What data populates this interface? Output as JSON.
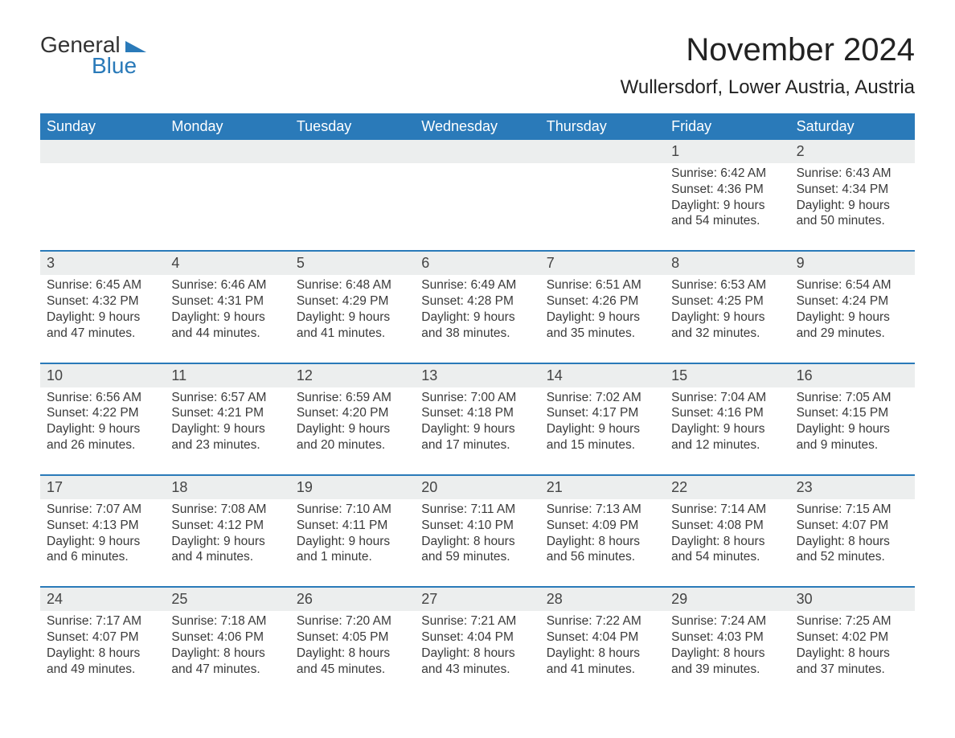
{
  "brand": {
    "word1": "General",
    "word2": "Blue"
  },
  "title": "November 2024",
  "location": "Wullersdorf, Lower Austria, Austria",
  "colors": {
    "accent": "#2a7ab9",
    "header_bg": "#2a7ab9",
    "header_text": "#ffffff",
    "row_stripe": "#eceeee",
    "text": "#333333",
    "background": "#ffffff"
  },
  "layout": {
    "columns": 7,
    "rows": 5,
    "start_day_index": 5
  },
  "weekdays": [
    "Sunday",
    "Monday",
    "Tuesday",
    "Wednesday",
    "Thursday",
    "Friday",
    "Saturday"
  ],
  "days": [
    {
      "n": 1,
      "sunrise": "6:42 AM",
      "sunset": "4:36 PM",
      "daylight": "9 hours and 54 minutes."
    },
    {
      "n": 2,
      "sunrise": "6:43 AM",
      "sunset": "4:34 PM",
      "daylight": "9 hours and 50 minutes."
    },
    {
      "n": 3,
      "sunrise": "6:45 AM",
      "sunset": "4:32 PM",
      "daylight": "9 hours and 47 minutes."
    },
    {
      "n": 4,
      "sunrise": "6:46 AM",
      "sunset": "4:31 PM",
      "daylight": "9 hours and 44 minutes."
    },
    {
      "n": 5,
      "sunrise": "6:48 AM",
      "sunset": "4:29 PM",
      "daylight": "9 hours and 41 minutes."
    },
    {
      "n": 6,
      "sunrise": "6:49 AM",
      "sunset": "4:28 PM",
      "daylight": "9 hours and 38 minutes."
    },
    {
      "n": 7,
      "sunrise": "6:51 AM",
      "sunset": "4:26 PM",
      "daylight": "9 hours and 35 minutes."
    },
    {
      "n": 8,
      "sunrise": "6:53 AM",
      "sunset": "4:25 PM",
      "daylight": "9 hours and 32 minutes."
    },
    {
      "n": 9,
      "sunrise": "6:54 AM",
      "sunset": "4:24 PM",
      "daylight": "9 hours and 29 minutes."
    },
    {
      "n": 10,
      "sunrise": "6:56 AM",
      "sunset": "4:22 PM",
      "daylight": "9 hours and 26 minutes."
    },
    {
      "n": 11,
      "sunrise": "6:57 AM",
      "sunset": "4:21 PM",
      "daylight": "9 hours and 23 minutes."
    },
    {
      "n": 12,
      "sunrise": "6:59 AM",
      "sunset": "4:20 PM",
      "daylight": "9 hours and 20 minutes."
    },
    {
      "n": 13,
      "sunrise": "7:00 AM",
      "sunset": "4:18 PM",
      "daylight": "9 hours and 17 minutes."
    },
    {
      "n": 14,
      "sunrise": "7:02 AM",
      "sunset": "4:17 PM",
      "daylight": "9 hours and 15 minutes."
    },
    {
      "n": 15,
      "sunrise": "7:04 AM",
      "sunset": "4:16 PM",
      "daylight": "9 hours and 12 minutes."
    },
    {
      "n": 16,
      "sunrise": "7:05 AM",
      "sunset": "4:15 PM",
      "daylight": "9 hours and 9 minutes."
    },
    {
      "n": 17,
      "sunrise": "7:07 AM",
      "sunset": "4:13 PM",
      "daylight": "9 hours and 6 minutes."
    },
    {
      "n": 18,
      "sunrise": "7:08 AM",
      "sunset": "4:12 PM",
      "daylight": "9 hours and 4 minutes."
    },
    {
      "n": 19,
      "sunrise": "7:10 AM",
      "sunset": "4:11 PM",
      "daylight": "9 hours and 1 minute."
    },
    {
      "n": 20,
      "sunrise": "7:11 AM",
      "sunset": "4:10 PM",
      "daylight": "8 hours and 59 minutes."
    },
    {
      "n": 21,
      "sunrise": "7:13 AM",
      "sunset": "4:09 PM",
      "daylight": "8 hours and 56 minutes."
    },
    {
      "n": 22,
      "sunrise": "7:14 AM",
      "sunset": "4:08 PM",
      "daylight": "8 hours and 54 minutes."
    },
    {
      "n": 23,
      "sunrise": "7:15 AM",
      "sunset": "4:07 PM",
      "daylight": "8 hours and 52 minutes."
    },
    {
      "n": 24,
      "sunrise": "7:17 AM",
      "sunset": "4:07 PM",
      "daylight": "8 hours and 49 minutes."
    },
    {
      "n": 25,
      "sunrise": "7:18 AM",
      "sunset": "4:06 PM",
      "daylight": "8 hours and 47 minutes."
    },
    {
      "n": 26,
      "sunrise": "7:20 AM",
      "sunset": "4:05 PM",
      "daylight": "8 hours and 45 minutes."
    },
    {
      "n": 27,
      "sunrise": "7:21 AM",
      "sunset": "4:04 PM",
      "daylight": "8 hours and 43 minutes."
    },
    {
      "n": 28,
      "sunrise": "7:22 AM",
      "sunset": "4:04 PM",
      "daylight": "8 hours and 41 minutes."
    },
    {
      "n": 29,
      "sunrise": "7:24 AM",
      "sunset": "4:03 PM",
      "daylight": "8 hours and 39 minutes."
    },
    {
      "n": 30,
      "sunrise": "7:25 AM",
      "sunset": "4:02 PM",
      "daylight": "8 hours and 37 minutes."
    }
  ],
  "labels": {
    "sunrise": "Sunrise:",
    "sunset": "Sunset:",
    "daylight": "Daylight:"
  },
  "typography": {
    "title_fontsize": 40,
    "location_fontsize": 24,
    "header_fontsize": 18,
    "body_fontsize": 15.5
  }
}
